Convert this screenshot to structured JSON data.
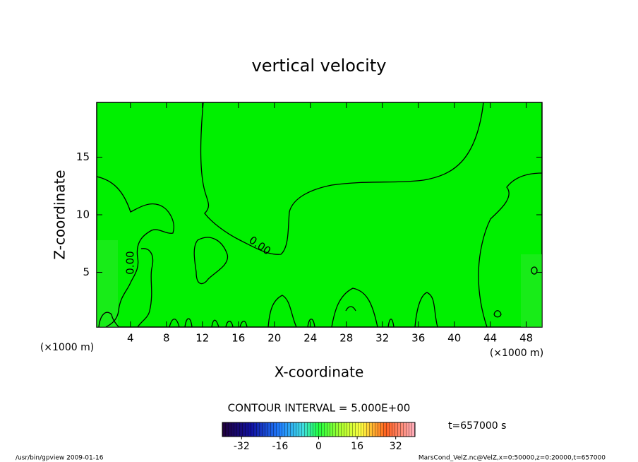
{
  "chart_data": {
    "type": "contour",
    "title": "vertical velocity",
    "x_label": "X-coordinate",
    "y_label": "Z-coordinate",
    "y_unit": "(×1000 m)",
    "x_unit": "(×1000 m)",
    "xlim": [
      0.25,
      49.75
    ],
    "xticks": [
      4,
      8,
      12,
      16,
      20,
      24,
      28,
      32,
      36,
      40,
      44,
      48
    ],
    "ylim": [
      0.25,
      19.75
    ],
    "yticks": [
      5,
      10,
      15
    ],
    "contour_labels": [
      "0.00",
      "0.00"
    ],
    "contour_interval": "CONTOUR INTERVAL = 5.000E+00",
    "time": "t=657000 s",
    "colorbar": {
      "lim": [
        -40,
        40
      ],
      "ticks": [
        -32,
        -16,
        0,
        16,
        32
      ]
    },
    "footer_left": "/usr/bin/gpview  2009-01-16",
    "footer_right": "MarsCond_VelZ.nc@VelZ,x=0:50000,z=0:20000,t=657000"
  }
}
